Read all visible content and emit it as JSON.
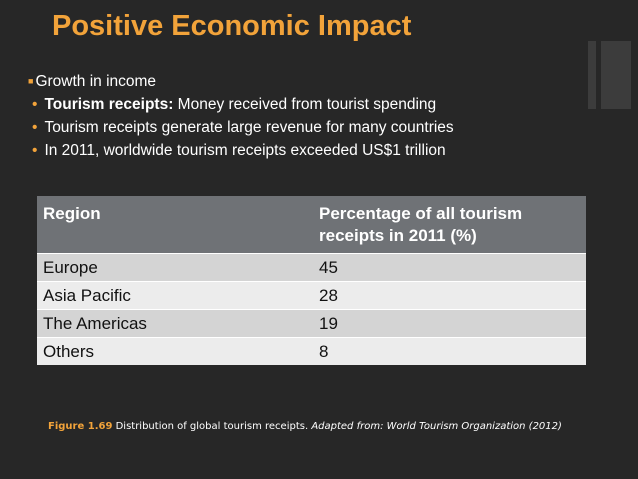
{
  "slide": {
    "title": "Positive Economic Impact",
    "bullets": [
      {
        "level": 0,
        "bold": "",
        "text": "Growth in income"
      },
      {
        "level": 1,
        "bold": "Tourism receipts:",
        "text": " Money received from tourist spending"
      },
      {
        "level": 1,
        "bold": "",
        "text": "Tourism receipts generate large revenue for many countries"
      },
      {
        "level": 1,
        "bold": "",
        "text": "In 2011, worldwide tourism receipts exceeded US$1 trillion"
      }
    ],
    "bullet_marks": {
      "level0": "■",
      "level1": "•"
    }
  },
  "table": {
    "headers": [
      "Region",
      "Percentage of all tourism receipts in 2011 (%)"
    ],
    "rows": [
      [
        "Europe",
        "45"
      ],
      [
        "Asia Pacific",
        "28"
      ],
      [
        "The Americas",
        "19"
      ],
      [
        "Others",
        "8"
      ]
    ]
  },
  "caption": {
    "figure": "Figure 1.69",
    "text": " Distribution of global tourism receipts. ",
    "source": "Adapted from: World Tourism Organization (2012)"
  },
  "colors": {
    "background": "#272727",
    "accent": "#f2a33a",
    "header_fill": "#6f7276",
    "row_dark": "#d4d4d4",
    "row_light": "#ececec"
  }
}
